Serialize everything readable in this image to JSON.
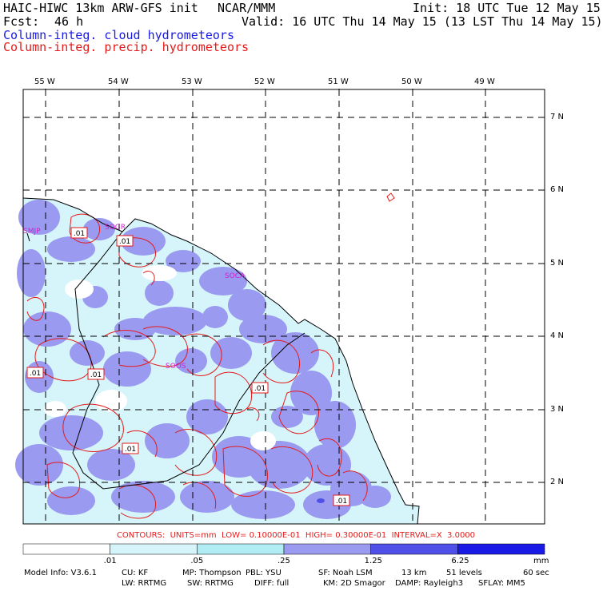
{
  "header": {
    "model_line": "HAIC-HIWC 13km ARW-GFS init",
    "org": "NCAR/MMM",
    "init": "Init: 18 UTC Tue 12 May 15",
    "fcst_label": "Fcst:",
    "fcst_value": "46 h",
    "valid": "Valid: 16 UTC Thu 14 May 15 (13 LST Thu 14 May 15)",
    "cloud_field": "Column-integ. cloud hydrometeors",
    "precip_field": "Column-integ. precip. hydrometeors"
  },
  "map": {
    "lon_labels": [
      "55 W",
      "54 W",
      "53 W",
      "52 W",
      "51 W",
      "50 W",
      "49 W"
    ],
    "lat_labels": [
      "7 N",
      "6 N",
      "5 N",
      "4 N",
      "3 N",
      "2 N"
    ],
    "stations": [
      "SMJP",
      "SOGR",
      "SOCA",
      "SOOS"
    ],
    "contour_labels": [
      ".01",
      ".01",
      ".01",
      ".01",
      ".01",
      ".01",
      ".01"
    ],
    "colors": {
      "lightest": "#d6f5fa",
      "light": "#9a9af0",
      "mid": "#5050e8",
      "dark": "#1a1ae6",
      "contour": "#e61a1a",
      "station": "#cc22cc"
    }
  },
  "contours_line": "CONTOURS:  UNITS=mm  LOW= 0.10000E-01  HIGH= 0.30000E-01  INTERVAL=X  3.0000",
  "colorbar": {
    "labels": [
      ".01",
      ".05",
      ".25",
      "1.25",
      "6.25",
      "mm"
    ],
    "colors": [
      "#ffffff",
      "#d6f5fa",
      "#b0ecf4",
      "#9a9af0",
      "#5050e8",
      "#1a1ae6"
    ]
  },
  "model_info": {
    "line1": [
      "Model Info: V3.6.1",
      "CU: KF",
      "MP: Thompson",
      "PBL: YSU",
      "SF: Noah LSM",
      "13 km",
      "51 levels",
      "60 sec"
    ],
    "line2": [
      "LW: RRTMG",
      "SW: RRTMG",
      "DIFF: full",
      "KM: 2D Smagor",
      "DAMP: Rayleigh3",
      "SFLAY: MM5"
    ]
  }
}
